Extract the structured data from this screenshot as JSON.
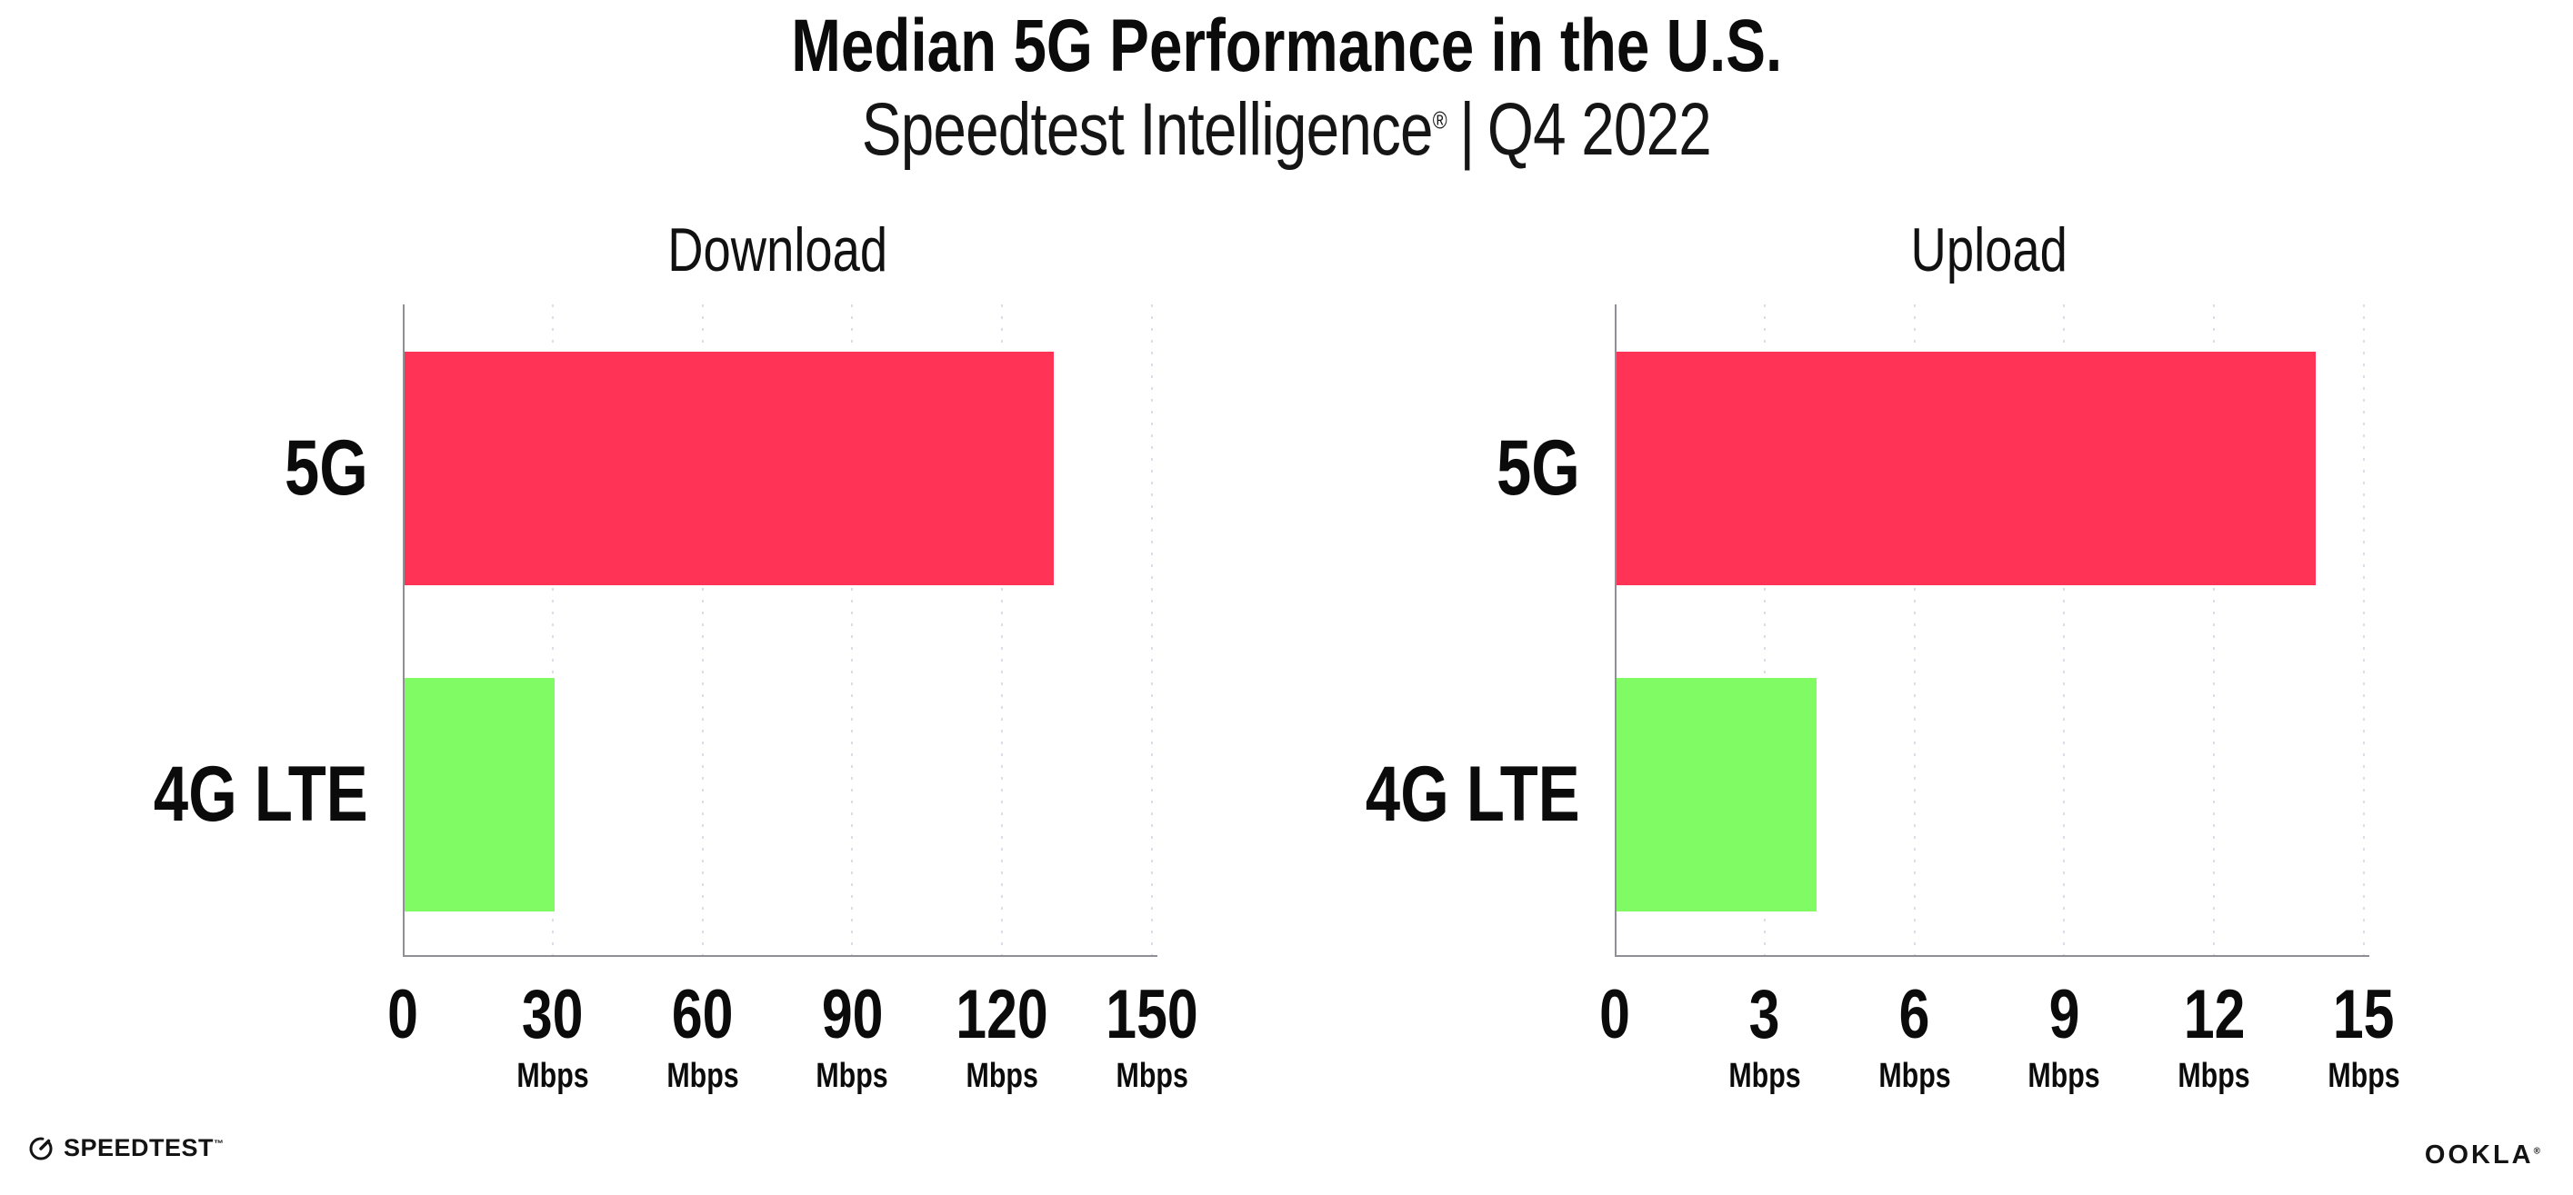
{
  "header": {
    "title": "Median 5G Performance in the U.S.",
    "subtitle": {
      "brand": "Speedtest Intelligence",
      "registered_mark": "®",
      "separator": "|",
      "period": "Q4 2022"
    }
  },
  "chart_data": [
    {
      "type": "bar",
      "orientation": "horizontal",
      "title": "Download",
      "categories": [
        "5G",
        "4G LTE"
      ],
      "values": [
        130,
        30
      ],
      "value_unit": "Mbps",
      "xlim": [
        0,
        150
      ],
      "xlabel": "",
      "ylabel": "",
      "grid": "dotted-vertical",
      "legend": "none",
      "colors": [
        "#FF3356",
        "#80FB64"
      ],
      "ticks": [
        {
          "label": "0",
          "unit": ""
        },
        {
          "label": "30",
          "unit": "Mbps"
        },
        {
          "label": "60",
          "unit": "Mbps"
        },
        {
          "label": "90",
          "unit": "Mbps"
        },
        {
          "label": "120",
          "unit": "Mbps"
        },
        {
          "label": "150",
          "unit": "Mbps"
        }
      ]
    },
    {
      "type": "bar",
      "orientation": "horizontal",
      "title": "Upload",
      "categories": [
        "5G",
        "4G LTE"
      ],
      "values": [
        14,
        4
      ],
      "value_unit": "Mbps",
      "xlim": [
        0,
        15
      ],
      "xlabel": "",
      "ylabel": "",
      "grid": "dotted-vertical",
      "legend": "none",
      "colors": [
        "#FF3356",
        "#80FB64"
      ],
      "ticks": [
        {
          "label": "0",
          "unit": ""
        },
        {
          "label": "3",
          "unit": "Mbps"
        },
        {
          "label": "6",
          "unit": "Mbps"
        },
        {
          "label": "9",
          "unit": "Mbps"
        },
        {
          "label": "12",
          "unit": "Mbps"
        },
        {
          "label": "15",
          "unit": "Mbps"
        }
      ]
    }
  ],
  "footer": {
    "speedtest_wordmark": "SPEEDTEST",
    "speedtest_trademark": "™",
    "ookla_wordmark": "OOKLA",
    "ookla_registered": "®"
  },
  "colors": {
    "bar_5g": "#FF3356",
    "bar_4g_lte": "#80FB64",
    "axis": "#8F8F96",
    "gridline": "#DCDDE8",
    "text": "#0D0D0D"
  }
}
